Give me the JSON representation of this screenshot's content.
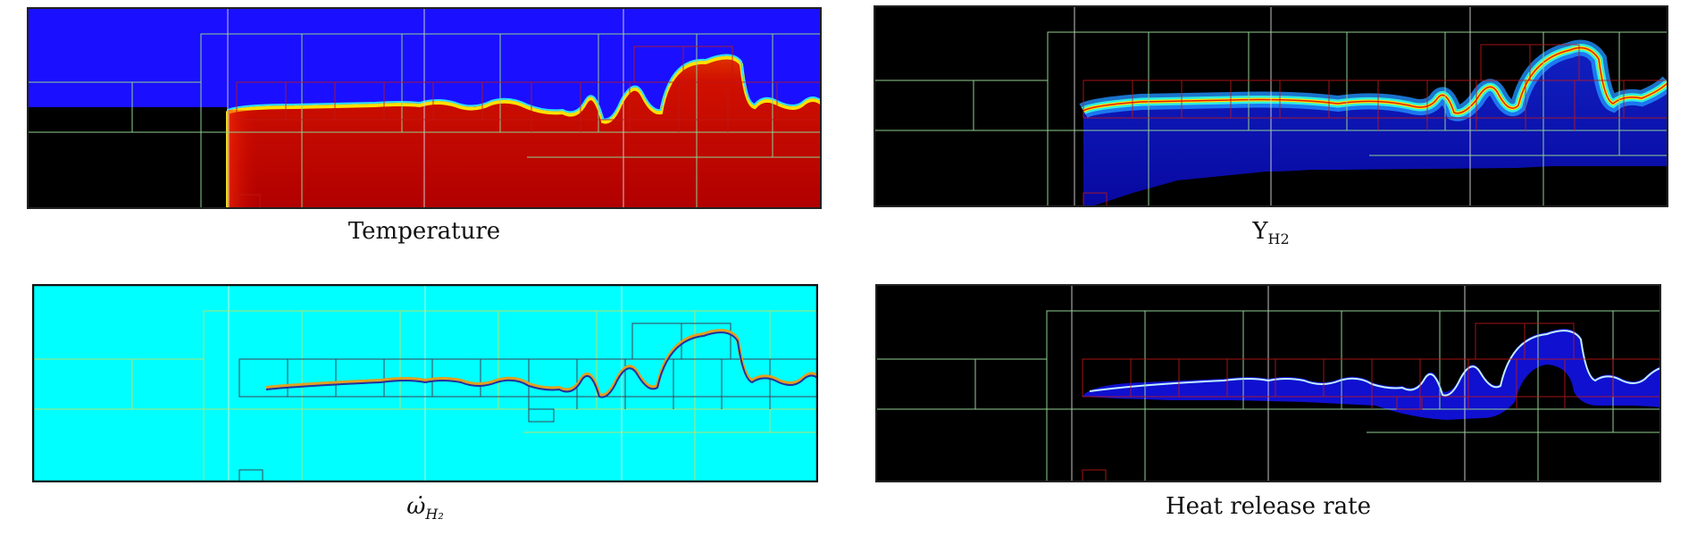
{
  "panels": [
    {
      "id": "temperature",
      "caption": "Temperature"
    },
    {
      "id": "yh2",
      "caption_base": "Y",
      "caption_sub": "H2"
    },
    {
      "id": "omega",
      "caption_base": "ω̇",
      "caption_sub": "H₂"
    },
    {
      "id": "hrr",
      "caption": "Heat release rate"
    }
  ],
  "colors": {
    "temperature_cold": "#1a10ff",
    "temperature_hot": "#c00000",
    "background_black": "#000000",
    "omega_background": "#00ffff",
    "grid_level1": "#8fd18f",
    "grid_level2": "#c01818",
    "grid_level0": "#d8d8d8",
    "hrr_flame": "#1010d0"
  }
}
